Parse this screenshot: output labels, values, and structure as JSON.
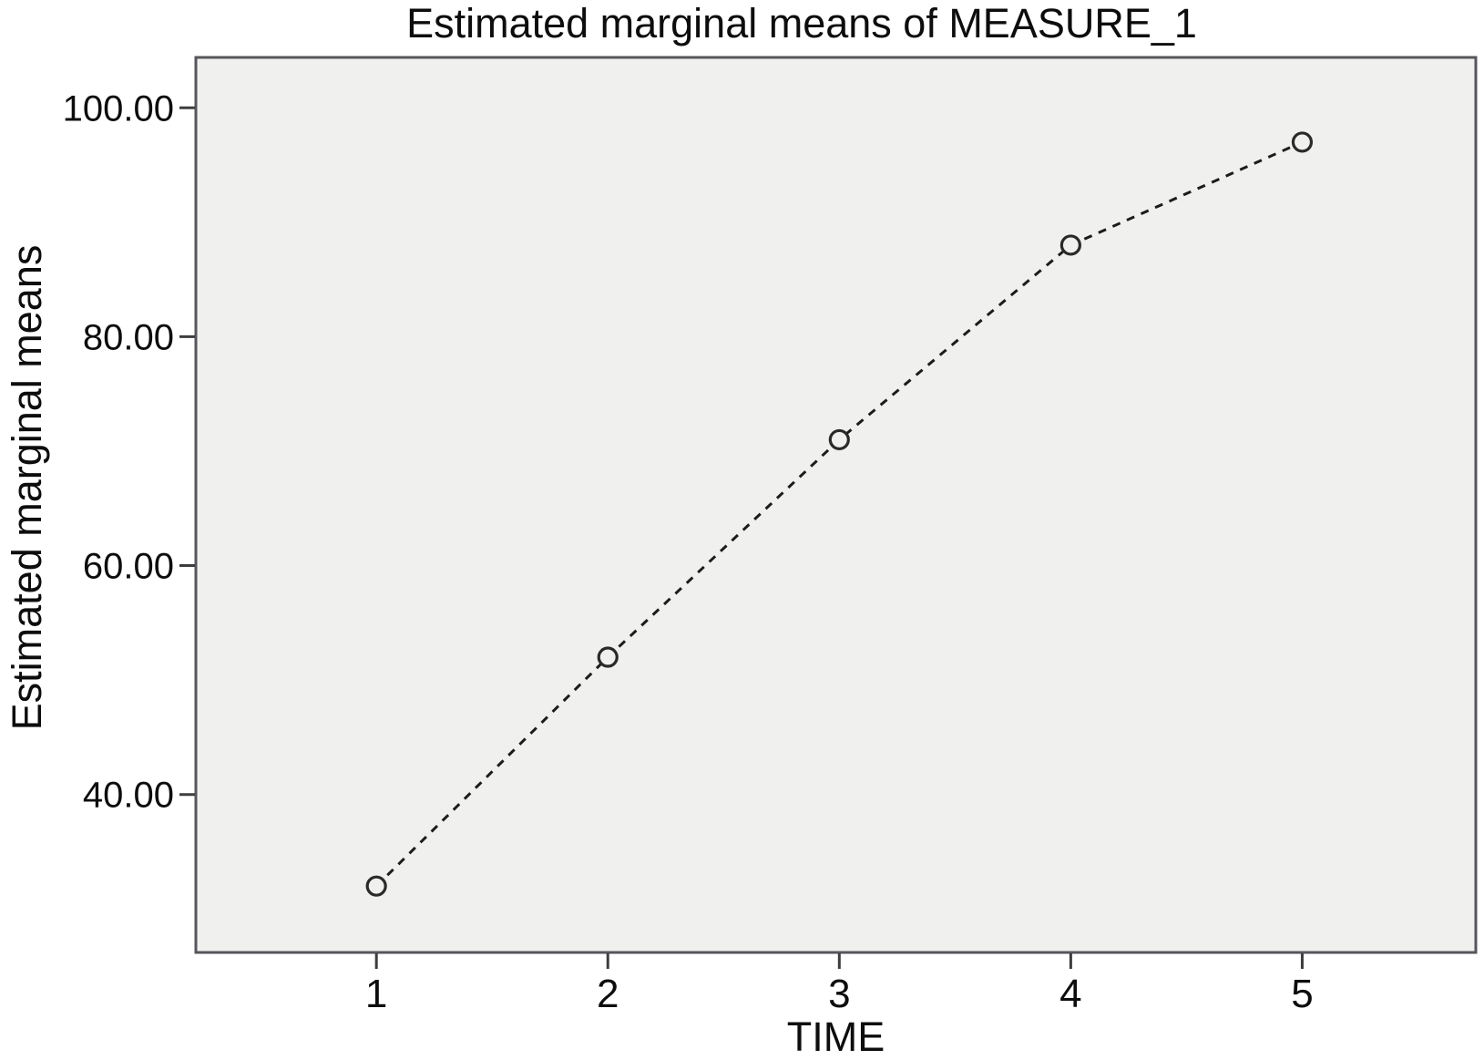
{
  "chart_data": {
    "type": "line",
    "title": "Estimated marginal means of MEASURE_1",
    "xlabel": "TIME",
    "ylabel": "Estimated marginal means",
    "x": [
      1,
      2,
      3,
      4,
      5
    ],
    "values": [
      32,
      52,
      71,
      88,
      97
    ],
    "xticks": [
      1,
      2,
      3,
      4,
      5
    ],
    "xtick_labels": [
      "1",
      "2",
      "3",
      "4",
      "5"
    ],
    "yticks": [
      40,
      60,
      80,
      100
    ],
    "ytick_labels": [
      "40.00",
      "60.00",
      "80.00",
      "100.00"
    ],
    "xlim": [
      0.22,
      5.75
    ],
    "ylim": [
      26.2,
      104.4
    ],
    "grid": false,
    "legend": false,
    "line_style": "dashed",
    "marker": "open-circle",
    "colors": {
      "page_background": "#ffffff",
      "plot_background": "#f0f0ef",
      "plot_border": "#56565b",
      "line": "#1c1c1c",
      "marker_stroke": "#2a2a2a",
      "tick": "#3d3d3f",
      "text": "#0d0d0d"
    }
  }
}
